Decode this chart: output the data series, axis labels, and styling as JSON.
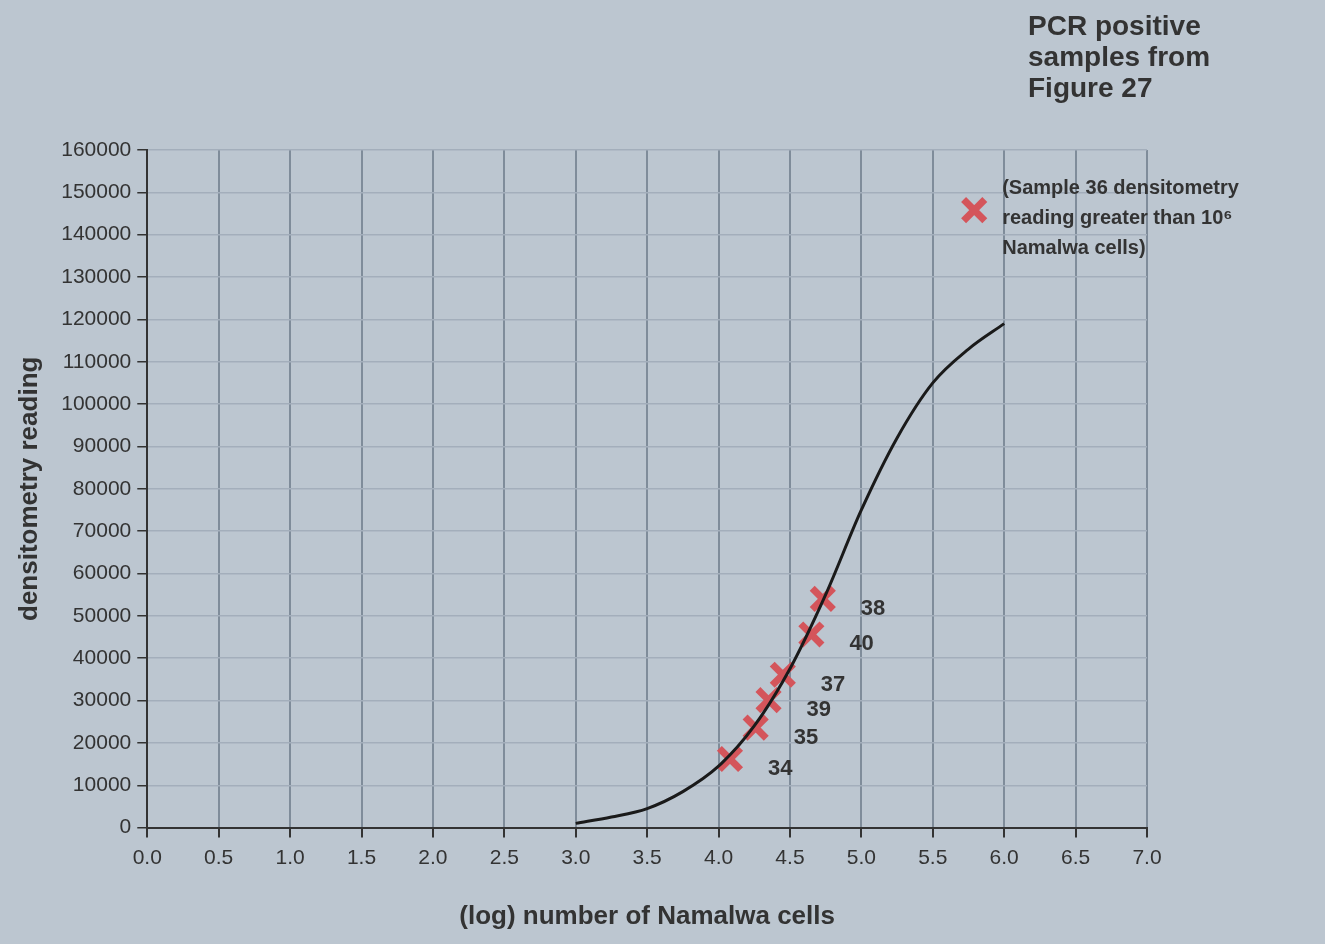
{
  "chart_data": {
    "type": "line",
    "title": "PCR positive samples from Figure 27",
    "xlabel": "(log) number of Namalwa cells",
    "ylabel": "densitometry reading",
    "xlim": [
      0,
      7
    ],
    "xticks": [
      {
        "value": 0,
        "label": "0.0"
      },
      {
        "value": 0.5,
        "label": "0.5"
      },
      {
        "value": 1,
        "label": "1.0"
      },
      {
        "value": 1.5,
        "label": "1.5"
      },
      {
        "value": 2,
        "label": "2.0"
      },
      {
        "value": 2.5,
        "label": "2.5"
      },
      {
        "value": 3,
        "label": "3.0"
      },
      {
        "value": 3.5,
        "label": "3.5"
      },
      {
        "value": 4,
        "label": "4.0"
      },
      {
        "value": 4.5,
        "label": "4.5"
      },
      {
        "value": 5,
        "label": "5.0"
      },
      {
        "value": 5.5,
        "label": "5.5"
      },
      {
        "value": 6,
        "label": "6.0"
      },
      {
        "value": 6.5,
        "label": "6.5"
      },
      {
        "value": 7,
        "label": "7.0"
      }
    ],
    "ylim": [
      0,
      160000
    ],
    "yticks": [
      0,
      10000,
      20000,
      30000,
      40000,
      50000,
      60000,
      70000,
      80000,
      90000,
      100000,
      110000,
      120000,
      130000,
      140000,
      150000,
      160000
    ],
    "grid": true,
    "legend": false,
    "series": [
      {
        "color": "#1a1a1a",
        "marker": "none",
        "line_style": "solid",
        "x": [
          3,
          3.25,
          3.5,
          3.75,
          4,
          4.25,
          4.5,
          4.75,
          5,
          5.25,
          5.5,
          5.75,
          6
        ],
        "values": [
          1000,
          2500,
          4500,
          8500,
          14500,
          24000,
          37500,
          55000,
          75000,
          92000,
          105000,
          113000,
          119000
        ]
      },
      {
        "type": "scatter",
        "color": "#d4555b",
        "marker": "cross",
        "x": [
          4.08,
          4.26,
          4.35,
          4.45,
          4.65,
          4.73,
          5.79
        ],
        "values": [
          16200,
          23600,
          30100,
          36100,
          45600,
          54000,
          145800
        ]
      }
    ],
    "annotations": [
      {
        "text": "34",
        "x": 4.08,
        "y": 16200
      },
      {
        "text": "35",
        "x": 4.26,
        "y": 23600
      },
      {
        "text": "39",
        "x": 4.35,
        "y": 30100
      },
      {
        "text": "37",
        "x": 4.45,
        "y": 36100
      },
      {
        "text": "40",
        "x": 4.65,
        "y": 45600
      },
      {
        "text": "38",
        "x": 4.73,
        "y": 54000
      },
      {
        "text": "(Sample 36 densitometry reading greater than 10⁶ Namalwa cells)",
        "x": 5.79,
        "y": 145800
      }
    ]
  }
}
